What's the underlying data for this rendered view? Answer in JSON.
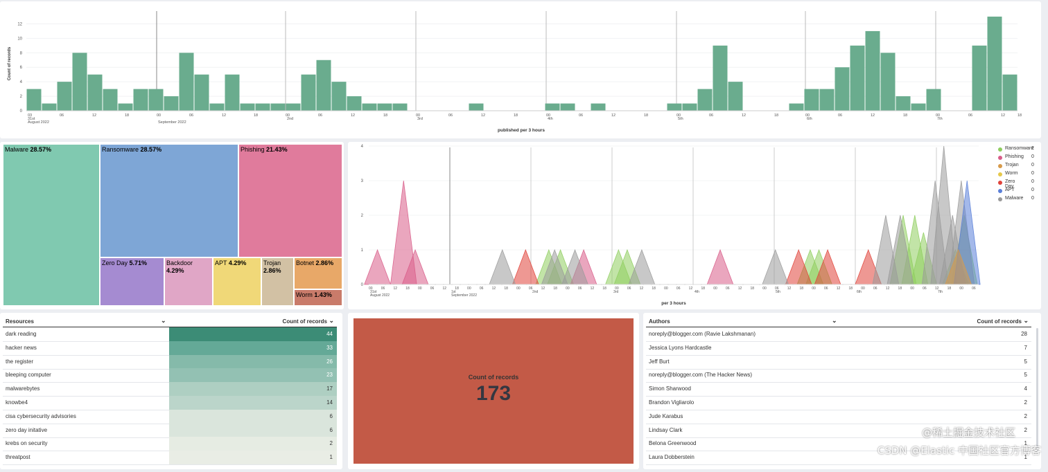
{
  "histogram": {
    "ylabel": "Count of records",
    "xlabel": "published per 3 hours",
    "ylim": [
      0,
      13
    ],
    "yticks": [
      "0",
      "2",
      "4",
      "6",
      "8",
      "10",
      "12"
    ]
  },
  "category_treemap": {
    "items": [
      {
        "name": "Malware",
        "pct": "28.57%",
        "color": "#80c9b0"
      },
      {
        "name": "Ransomware",
        "pct": "28.57%",
        "color": "#7ea6d6"
      },
      {
        "name": "Phishing",
        "pct": "21.43%",
        "color": "#e07b9c"
      },
      {
        "name": "Zero Day",
        "pct": "5.71%",
        "color": "#a58bd1"
      },
      {
        "name": "Backdoor",
        "pct": "4.29%",
        "color": "#e0a6c6"
      },
      {
        "name": "APT",
        "pct": "4.29%",
        "color": "#f0d878"
      },
      {
        "name": "Trojan",
        "pct": "2.86%",
        "color": "#d2c1a4"
      },
      {
        "name": "Botnet",
        "pct": "2.86%",
        "color": "#e8a868"
      },
      {
        "name": "Worm",
        "pct": "1.43%",
        "color": "#c97b6a"
      }
    ]
  },
  "area_chart": {
    "xlabel": "per 3 hours",
    "yticks": [
      "0",
      "1",
      "2",
      "3",
      "4"
    ],
    "legend": [
      {
        "name": "Ransomware",
        "value": "2",
        "color": "#8fce5f"
      },
      {
        "name": "Phishing",
        "value": "0",
        "color": "#d85c88"
      },
      {
        "name": "Trojan",
        "value": "0",
        "color": "#d79a4a"
      },
      {
        "name": "Worm",
        "value": "0",
        "color": "#e6c84a"
      },
      {
        "name": "Zero Day",
        "value": "0",
        "color": "#e0433a"
      },
      {
        "name": "APT",
        "value": "0",
        "color": "#5a7fd8"
      },
      {
        "name": "Malware",
        "value": "0",
        "color": "#9a9a9a"
      }
    ]
  },
  "resources_table": {
    "col1": "Resources",
    "col2": "Count of records",
    "rows": [
      {
        "name": "dark reading",
        "count": "44"
      },
      {
        "name": "hacker news",
        "count": "33"
      },
      {
        "name": "the register",
        "count": "26"
      },
      {
        "name": "bleeping computer",
        "count": "23"
      },
      {
        "name": "malwarebytes",
        "count": "17"
      },
      {
        "name": "knowbe4",
        "count": "14"
      },
      {
        "name": "cisa cybersecurity advisories",
        "count": "6"
      },
      {
        "name": "zero day initative",
        "count": "6"
      },
      {
        "name": "krebs on security",
        "count": "2"
      },
      {
        "name": "threatpost",
        "count": "1"
      }
    ]
  },
  "metric": {
    "title": "Count of records",
    "value": "173",
    "bg": "#c35a47"
  },
  "authors_table": {
    "col1": "Authors",
    "col2": "Count of records",
    "rows": [
      {
        "name": "noreply@blogger.com (Ravie Lakshmanan)",
        "count": "28"
      },
      {
        "name": "Jessica Lyons Hardcastle",
        "count": "7"
      },
      {
        "name": "Jeff Burt",
        "count": "5"
      },
      {
        "name": "noreply@blogger.com (The Hacker News)",
        "count": "5"
      },
      {
        "name": "Simon Sharwood",
        "count": "4"
      },
      {
        "name": "Brandon Vigliarolo",
        "count": "2"
      },
      {
        "name": "Jude Karabus",
        "count": "2"
      },
      {
        "name": "Lindsay Clark",
        "count": "2"
      },
      {
        "name": "Belona Greenwood",
        "count": "1"
      },
      {
        "name": "Laura Dobberstein",
        "count": "1"
      }
    ]
  },
  "watermark": "CSDN @Elastic 中国社区官方博客",
  "watermark2": "@稀土掘金技术社区",
  "chart_data": [
    {
      "type": "bar",
      "title": "",
      "xlabel": "published per 3 hours",
      "ylabel": "Count of records",
      "ylim": [
        0,
        13
      ],
      "tick_labels": [
        "03",
        "06",
        "12",
        "18",
        "00",
        "06",
        "12",
        "18",
        "00",
        "06",
        "12",
        "18",
        "00",
        "06",
        "12",
        "18",
        "00",
        "06",
        "12",
        "18",
        "00",
        "06",
        "12",
        "18",
        "00",
        "06",
        "12",
        "18",
        "00",
        "06",
        "12",
        "18"
      ],
      "date_labels": [
        "31st",
        "August 2022",
        "September 2022",
        "2nd",
        "3rd",
        "4th",
        "5th",
        "6th",
        "7th"
      ],
      "values": [
        3,
        1,
        4,
        8,
        5,
        3,
        1,
        3,
        3,
        2,
        8,
        5,
        1,
        5,
        1,
        1,
        1,
        1,
        5,
        7,
        4,
        2,
        1,
        1,
        1,
        0,
        0,
        0,
        0,
        1,
        0,
        0,
        0,
        0,
        1,
        1,
        0,
        1,
        0,
        0,
        0,
        0,
        1,
        1,
        3,
        9,
        4,
        0,
        0,
        0,
        1,
        3,
        3,
        6,
        9,
        11,
        8,
        2,
        1,
        3,
        0,
        0,
        9,
        13,
        5
      ]
    },
    {
      "type": "area",
      "xlabel": "per 3 hours",
      "ylim": [
        0,
        4
      ],
      "series": [
        {
          "name": "Ransomware",
          "peaks": [
            [
              6.2,
              1
            ],
            [
              6.6,
              1
            ],
            [
              8.6,
              1
            ],
            [
              8.9,
              1
            ],
            [
              15.2,
              1
            ],
            [
              15.5,
              1
            ],
            [
              18.4,
              2
            ],
            [
              18.8,
              2
            ],
            [
              19.1,
              1.5
            ],
            [
              20.2,
              1
            ],
            [
              20.5,
              2
            ]
          ]
        },
        {
          "name": "Phishing",
          "peaks": [
            [
              0.3,
              1
            ],
            [
              1.2,
              3
            ],
            [
              1.6,
              1
            ],
            [
              7.4,
              1
            ],
            [
              12.1,
              1
            ]
          ]
        },
        {
          "name": "Zero Day",
          "peaks": [
            [
              5.4,
              1
            ],
            [
              14.8,
              1
            ],
            [
              15.8,
              1
            ],
            [
              17.2,
              1
            ]
          ]
        },
        {
          "name": "Malware",
          "peaks": [
            [
              4.6,
              1
            ],
            [
              6.4,
              1
            ],
            [
              7.1,
              1
            ],
            [
              9.4,
              1
            ],
            [
              14.0,
              1
            ],
            [
              17.8,
              2
            ],
            [
              18.3,
              2
            ],
            [
              19.5,
              3
            ],
            [
              19.8,
              4
            ],
            [
              20.1,
              2
            ],
            [
              20.4,
              3
            ]
          ]
        },
        {
          "name": "APT",
          "peaks": [
            [
              20.6,
              3
            ]
          ]
        },
        {
          "name": "Trojan",
          "peaks": [
            [
              20.3,
              1
            ]
          ]
        }
      ]
    }
  ]
}
